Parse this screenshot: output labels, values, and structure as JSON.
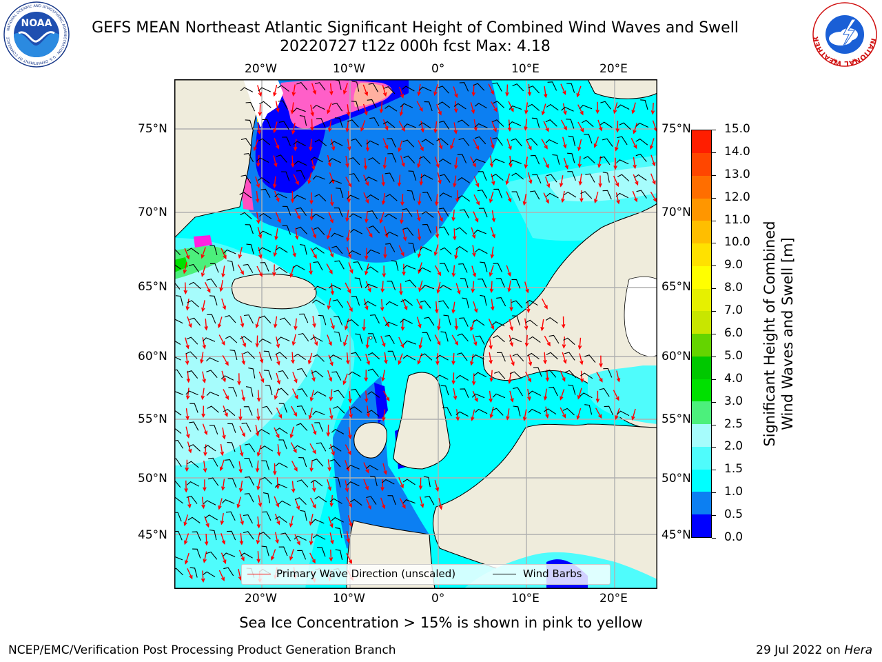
{
  "title": {
    "line1": "GEFS MEAN Northeast Atlantic Significant Height of Combined Wind Waves and Swell",
    "line2": "20220727 t12z 000h fcst   Max: 4.18"
  },
  "map": {
    "lon_ticks": [
      "20°W",
      "10°W",
      "0°",
      "10°E",
      "20°E"
    ],
    "lat_ticks": [
      "75°N",
      "70°N",
      "65°N",
      "60°N",
      "55°N",
      "50°N",
      "45°N"
    ],
    "legend": {
      "wave_direction": "Primary Wave Direction (unscaled)",
      "wind_barbs": "Wind Barbs",
      "wave_color": "#ff0000",
      "barb_color": "#000000"
    },
    "land_color": "#efecdc",
    "grid_color": "#b0b0b0"
  },
  "colorbar": {
    "label_line1": "Significant Height of Combined",
    "label_line2": "Wind Waves and Swell [m]",
    "ticks": [
      "0.0",
      "0.5",
      "1.0",
      "1.5",
      "2.0",
      "2.5",
      "3.0",
      "4.0",
      "5.0",
      "6.0",
      "7.0",
      "8.0",
      "9.0",
      "10.0",
      "11.0",
      "12.0",
      "13.0",
      "14.0",
      "15.0"
    ],
    "colors": [
      "#0000ff",
      "#0c7ff2",
      "#00ffff",
      "#4ffcfc",
      "#a6fcfc",
      "#4cf07c",
      "#00e000",
      "#00c800",
      "#64d400",
      "#c8e600",
      "#e6f000",
      "#ffff00",
      "#ffe100",
      "#ffbe00",
      "#ff9600",
      "#ff6e00",
      "#ff4600",
      "#ff1e00"
    ]
  },
  "ice_note": "Sea Ice Concentration > 15% is shown in pink to yellow",
  "footer": {
    "left": "NCEP/EMC/Verification Post Processing Product Generation Branch",
    "date": "29 Jul 2022 on ",
    "machine": "Hera"
  },
  "logos": {
    "noaa_text": "NOAA",
    "noaa_ring": "NATIONAL OCEANIC AND ATMOSPHERIC ADMINISTRATION · U.S. DEPARTMENT OF COMMERCE",
    "nws_ring": "NATIONAL WEATHER SERVICE"
  }
}
